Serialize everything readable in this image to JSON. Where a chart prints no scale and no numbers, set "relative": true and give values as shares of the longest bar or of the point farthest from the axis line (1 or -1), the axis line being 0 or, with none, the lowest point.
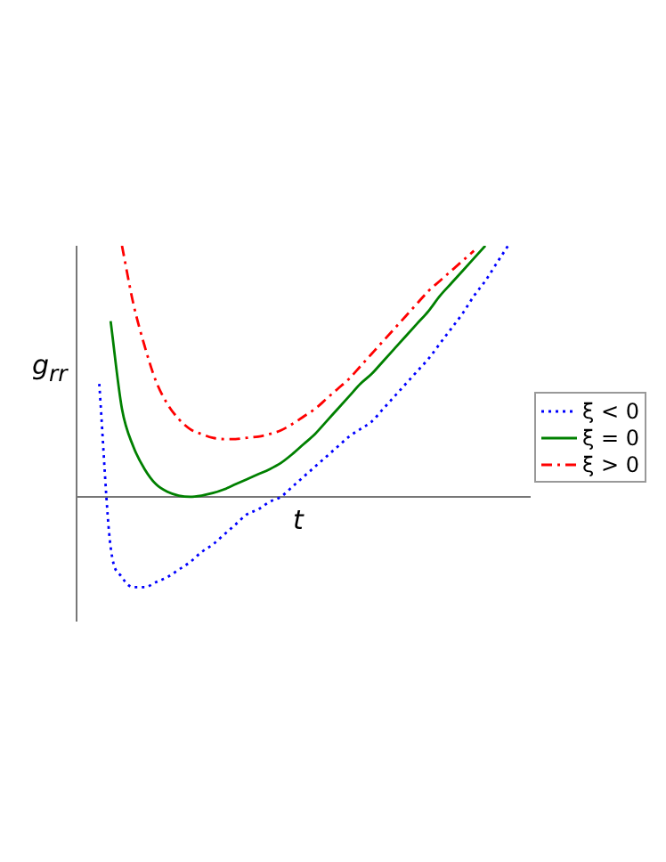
{
  "chart_data": {
    "type": "line",
    "relative": true,
    "xlabel": "t",
    "ylabel": "g$_{rr}$",
    "legend": "right",
    "marker": "none",
    "categories": [
      null,
      null,
      null,
      null,
      null,
      null,
      null,
      null,
      null,
      null,
      null,
      null,
      null,
      null,
      null,
      null,
      null,
      null,
      null,
      null,
      null,
      null,
      null,
      null,
      null,
      null,
      null,
      null,
      null,
      null,
      null,
      null,
      null,
      null,
      null,
      null,
      null,
      null,
      null,
      null,
      null
    ],
    "series": [
      {
        "name": "ξ < 0",
        "color": "#0000ff",
        "line_style": "dotted",
        "values": [
          null,
          null,
          0.45,
          -0.2,
          -0.32,
          -0.36,
          -0.36,
          -0.34,
          -0.32,
          -0.29,
          -0.26,
          -0.22,
          -0.19,
          -0.15,
          -0.11,
          -0.07,
          -0.05,
          -0.02,
          0.0,
          0.04,
          0.08,
          0.12,
          0.16,
          0.2,
          0.24,
          0.27,
          0.3,
          0.35,
          0.4,
          0.45,
          0.5,
          0.55,
          0.61,
          0.67,
          0.73,
          0.8,
          0.86,
          0.93,
          1.0,
          null,
          null
        ]
      },
      {
        "name": "ξ = 0",
        "color": "#008000",
        "line_style": "solid",
        "values": [
          null,
          null,
          null,
          0.7,
          0.35,
          0.2,
          0.11,
          0.05,
          0.02,
          0.005,
          0.0,
          0.005,
          0.015,
          0.03,
          0.05,
          0.07,
          0.09,
          0.11,
          0.135,
          0.17,
          0.21,
          0.25,
          0.3,
          0.35,
          0.4,
          0.45,
          0.49,
          0.54,
          0.59,
          0.64,
          0.69,
          0.74,
          0.8,
          0.85,
          0.9,
          0.95,
          1.0,
          null,
          null,
          null,
          null
        ]
      },
      {
        "name": "ξ > 0",
        "color": "#ff0000",
        "line_style": "dashed",
        "values": [
          null,
          null,
          null,
          null,
          1.0,
          0.77,
          0.6,
          0.46,
          0.37,
          0.31,
          0.27,
          0.25,
          0.235,
          0.23,
          0.23,
          0.235,
          0.24,
          0.25,
          0.265,
          0.29,
          0.32,
          0.35,
          0.39,
          0.43,
          0.47,
          0.52,
          0.57,
          0.62,
          0.67,
          0.72,
          0.77,
          0.82,
          0.86,
          0.9,
          0.94,
          0.98,
          null,
          null,
          null,
          null,
          null
        ]
      }
    ]
  }
}
